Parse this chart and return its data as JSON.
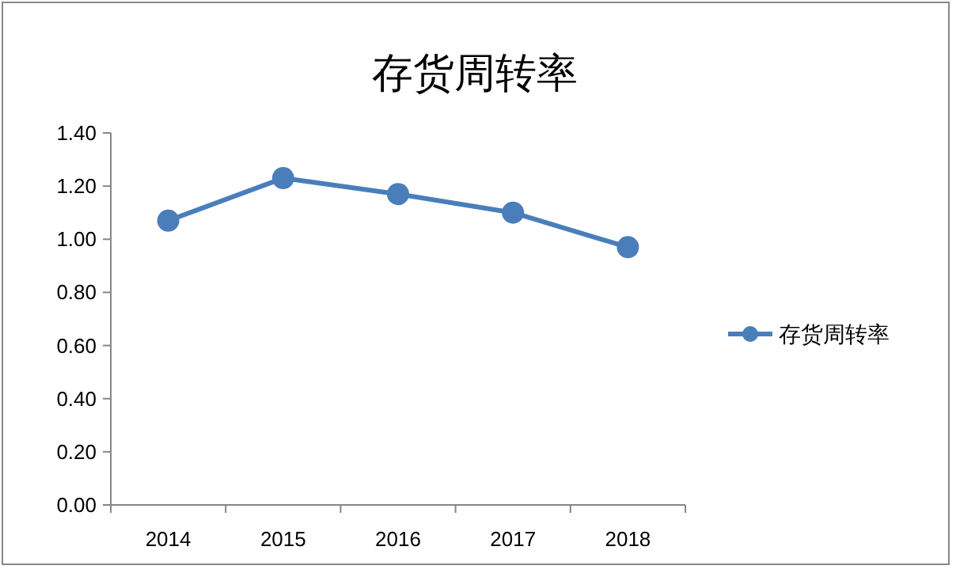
{
  "chart_data": {
    "type": "line",
    "title": "存货周转率",
    "categories": [
      "2014",
      "2015",
      "2016",
      "2017",
      "2018"
    ],
    "series": [
      {
        "name": "存货周转率",
        "color": "#4a7ebb",
        "values": [
          1.07,
          1.23,
          1.17,
          1.1,
          0.97
        ]
      }
    ],
    "ylim": [
      0,
      1.4
    ],
    "yticks": [
      {
        "value": 0,
        "label": "0.00"
      },
      {
        "value": 0.2,
        "label": "0.20"
      },
      {
        "value": 0.4,
        "label": "0.40"
      },
      {
        "value": 0.6,
        "label": "0.60"
      },
      {
        "value": 0.8,
        "label": "0.80"
      },
      {
        "value": 1.0,
        "label": "1.00"
      },
      {
        "value": 1.2,
        "label": "1.20"
      },
      {
        "value": 1.4,
        "label": "1.40"
      }
    ],
    "grid": false,
    "legend": "right",
    "marker": "circle",
    "line_style": "solid"
  }
}
